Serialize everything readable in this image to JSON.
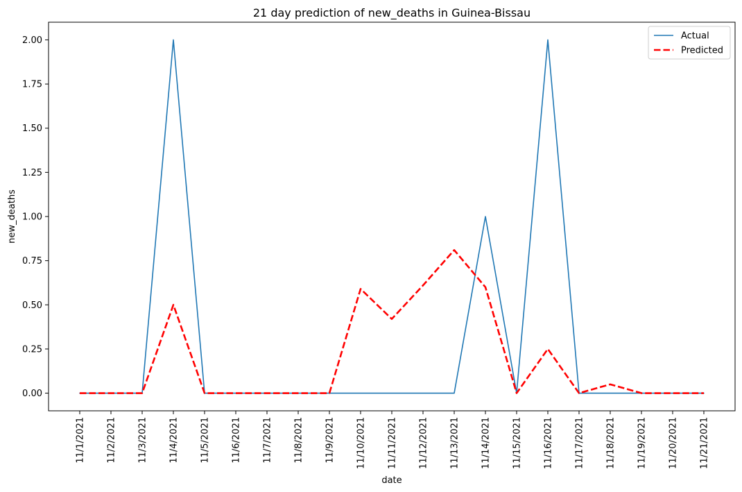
{
  "chart_data": {
    "type": "line",
    "title": "21 day prediction of new_deaths in Guinea-Bissau",
    "xlabel": "date",
    "ylabel": "new_deaths",
    "categories": [
      "11/1/2021",
      "11/2/2021",
      "11/3/2021",
      "11/4/2021",
      "11/5/2021",
      "11/6/2021",
      "11/7/2021",
      "11/8/2021",
      "11/9/2021",
      "11/10/2021",
      "11/11/2021",
      "11/12/2021",
      "11/13/2021",
      "11/14/2021",
      "11/15/2021",
      "11/16/2021",
      "11/17/2021",
      "11/18/2021",
      "11/19/2021",
      "11/20/2021",
      "11/21/2021"
    ],
    "y_ticks": [
      "0.00",
      "0.25",
      "0.50",
      "0.75",
      "1.00",
      "1.25",
      "1.50",
      "1.75",
      "2.00"
    ],
    "ylim": [
      -0.1,
      2.1
    ],
    "grid": false,
    "legend_position": "top-right",
    "series": [
      {
        "name": "Actual",
        "color": "#1f77b4",
        "style": "solid",
        "values": [
          0,
          0,
          0,
          2,
          0,
          0,
          0,
          0,
          0,
          0,
          0,
          0,
          0,
          1,
          0,
          2,
          0,
          0,
          0,
          0,
          0
        ]
      },
      {
        "name": "Predicted",
        "color": "#ff0000",
        "style": "dashed",
        "values": [
          0,
          0,
          0,
          0.5,
          0,
          0,
          0,
          0,
          0,
          0.59,
          0.42,
          0.61,
          0.81,
          0.6,
          0,
          0.25,
          0,
          0.05,
          0,
          0,
          0
        ]
      }
    ]
  }
}
